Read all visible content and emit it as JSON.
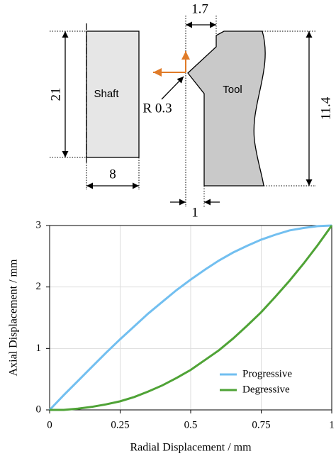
{
  "diagram": {
    "shaft_label": "Shaft",
    "tool_label": "Tool",
    "radius_label": "R 0.3",
    "dim_height_shaft": "21",
    "dim_width_shaft": "8",
    "dim_tool_offset": "1.7",
    "dim_height_tool": "11.4",
    "dim_gap": "1"
  },
  "chart_data": {
    "type": "line",
    "x_label": "Radial Displacement / mm",
    "y_label": "Axial Displacement / mm",
    "x": [
      0,
      0.05,
      0.1,
      0.15,
      0.2,
      0.25,
      0.3,
      0.35,
      0.4,
      0.45,
      0.5,
      0.55,
      0.6,
      0.65,
      0.7,
      0.75,
      0.8,
      0.85,
      0.9,
      0.95,
      1
    ],
    "series": [
      {
        "name": "Progressive",
        "color": "#72bff0",
        "values": [
          0,
          0.24,
          0.47,
          0.7,
          0.93,
          1.15,
          1.36,
          1.57,
          1.76,
          1.95,
          2.12,
          2.28,
          2.43,
          2.56,
          2.67,
          2.77,
          2.85,
          2.92,
          2.96,
          2.99,
          3
        ]
      },
      {
        "name": "Degressive",
        "color": "#4fa336",
        "values": [
          0,
          0,
          0.02,
          0.05,
          0.09,
          0.14,
          0.21,
          0.3,
          0.4,
          0.52,
          0.65,
          0.81,
          0.97,
          1.16,
          1.37,
          1.59,
          1.84,
          2.1,
          2.38,
          2.68,
          3
        ]
      }
    ],
    "xlim": [
      0,
      1
    ],
    "xticks": [
      0,
      0.25,
      0.5,
      0.75,
      1
    ],
    "ylim": [
      0,
      3
    ],
    "yticks": [
      0,
      1,
      2,
      3
    ],
    "grid": true,
    "legend": "lower-right"
  }
}
